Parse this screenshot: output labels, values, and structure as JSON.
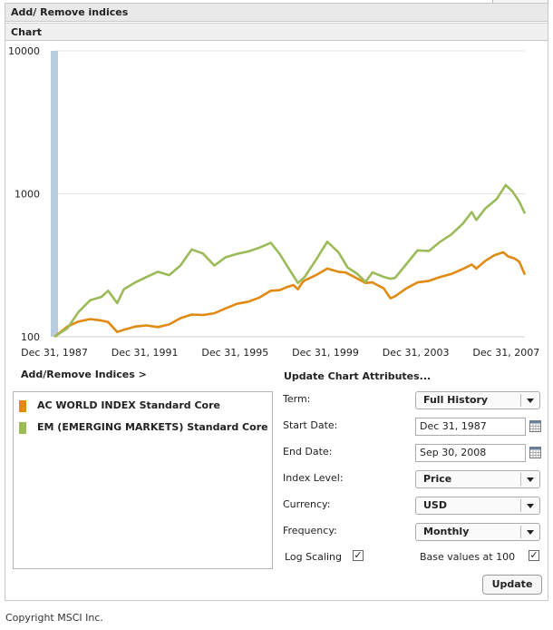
{
  "header": {
    "title": "Add/ Remove indices",
    "chart_tab": "Chart"
  },
  "chart_data": {
    "type": "line",
    "y_scale": "log",
    "ylim": [
      100,
      10000
    ],
    "y_ticks": [
      "10000",
      "1000",
      "100"
    ],
    "x_ticks": [
      "Dec 31, 1987",
      "Dec 31, 1991",
      "Dec 31, 1995",
      "Dec 31, 1999",
      "Dec 31, 2003",
      "Dec 31, 2007"
    ],
    "xlim": [
      1987.92,
      2008.75
    ],
    "grid": true,
    "series": [
      {
        "name": "AC WORLD INDEX Standard Core",
        "color": "#e08a12",
        "points": [
          [
            1987.92,
            100
          ],
          [
            1988.5,
            118
          ],
          [
            1989.0,
            128
          ],
          [
            1989.5,
            133
          ],
          [
            1990.0,
            130
          ],
          [
            1990.3,
            127
          ],
          [
            1990.7,
            108
          ],
          [
            1991.0,
            112
          ],
          [
            1991.5,
            118
          ],
          [
            1992.0,
            120
          ],
          [
            1992.5,
            117
          ],
          [
            1993.0,
            122
          ],
          [
            1993.5,
            135
          ],
          [
            1994.0,
            143
          ],
          [
            1994.5,
            142
          ],
          [
            1995.0,
            146
          ],
          [
            1995.5,
            158
          ],
          [
            1996.0,
            170
          ],
          [
            1996.5,
            176
          ],
          [
            1997.0,
            188
          ],
          [
            1997.5,
            210
          ],
          [
            1997.9,
            212
          ],
          [
            1998.2,
            222
          ],
          [
            1998.5,
            230
          ],
          [
            1998.7,
            215
          ],
          [
            1998.9,
            240
          ],
          [
            1999.0,
            248
          ],
          [
            1999.5,
            270
          ],
          [
            2000.0,
            300
          ],
          [
            2000.5,
            285
          ],
          [
            2000.8,
            282
          ],
          [
            2001.2,
            262
          ],
          [
            2001.7,
            238
          ],
          [
            2002.0,
            240
          ],
          [
            2002.5,
            218
          ],
          [
            2002.8,
            186
          ],
          [
            2003.0,
            192
          ],
          [
            2003.5,
            218
          ],
          [
            2004.0,
            240
          ],
          [
            2004.5,
            246
          ],
          [
            2005.0,
            262
          ],
          [
            2005.5,
            275
          ],
          [
            2006.0,
            298
          ],
          [
            2006.4,
            320
          ],
          [
            2006.6,
            300
          ],
          [
            2007.0,
            340
          ],
          [
            2007.4,
            372
          ],
          [
            2007.8,
            390
          ],
          [
            2008.0,
            365
          ],
          [
            2008.3,
            352
          ],
          [
            2008.5,
            335
          ],
          [
            2008.75,
            272
          ]
        ]
      },
      {
        "name": "EM (EMERGING MARKETS) Standard Core",
        "color": "#9bbb59",
        "points": [
          [
            1987.92,
            100
          ],
          [
            1988.5,
            115
          ],
          [
            1989.0,
            150
          ],
          [
            1989.5,
            180
          ],
          [
            1990.0,
            190
          ],
          [
            1990.3,
            210
          ],
          [
            1990.7,
            172
          ],
          [
            1991.0,
            215
          ],
          [
            1991.5,
            240
          ],
          [
            1992.0,
            262
          ],
          [
            1992.5,
            285
          ],
          [
            1993.0,
            270
          ],
          [
            1993.5,
            315
          ],
          [
            1994.0,
            408
          ],
          [
            1994.5,
            382
          ],
          [
            1995.0,
            315
          ],
          [
            1995.5,
            360
          ],
          [
            1996.0,
            380
          ],
          [
            1996.5,
            395
          ],
          [
            1997.0,
            420
          ],
          [
            1997.5,
            455
          ],
          [
            1997.9,
            378
          ],
          [
            1998.3,
            300
          ],
          [
            1998.7,
            238
          ],
          [
            1999.0,
            262
          ],
          [
            1999.5,
            345
          ],
          [
            2000.0,
            462
          ],
          [
            2000.5,
            390
          ],
          [
            2000.9,
            305
          ],
          [
            2001.3,
            278
          ],
          [
            2001.7,
            242
          ],
          [
            2002.0,
            282
          ],
          [
            2002.5,
            262
          ],
          [
            2002.8,
            255
          ],
          [
            2003.0,
            258
          ],
          [
            2003.5,
            322
          ],
          [
            2004.0,
            402
          ],
          [
            2004.5,
            398
          ],
          [
            2005.0,
            462
          ],
          [
            2005.5,
            520
          ],
          [
            2006.0,
            618
          ],
          [
            2006.4,
            745
          ],
          [
            2006.6,
            655
          ],
          [
            2007.0,
            790
          ],
          [
            2007.5,
            920
          ],
          [
            2007.9,
            1150
          ],
          [
            2008.2,
            1040
          ],
          [
            2008.5,
            880
          ],
          [
            2008.75,
            728
          ]
        ]
      }
    ]
  },
  "left": {
    "link": "Add/Remove Indices >"
  },
  "legend": [
    {
      "label": "AC WORLD INDEX Standard Core",
      "color": "#e08a12"
    },
    {
      "label": "EM (EMERGING MARKETS) Standard Core",
      "color": "#9bbb59"
    }
  ],
  "attributes": {
    "title": "Update Chart Attributes...",
    "term_label": "Term:",
    "term_value": "Full History",
    "start_label": "Start Date:",
    "start_value": "Dec 31, 1987",
    "end_label": "End Date:",
    "end_value": "Sep 30, 2008",
    "level_label": "Index Level:",
    "level_value": "Price",
    "currency_label": "Currency:",
    "currency_value": "USD",
    "frequency_label": "Frequency:",
    "frequency_value": "Monthly",
    "log_label": "Log Scaling",
    "base_label": "Base values at 100",
    "check_mark": "✓",
    "update_label": "Update"
  },
  "footer": {
    "copyright": "Copyright MSCI Inc."
  }
}
